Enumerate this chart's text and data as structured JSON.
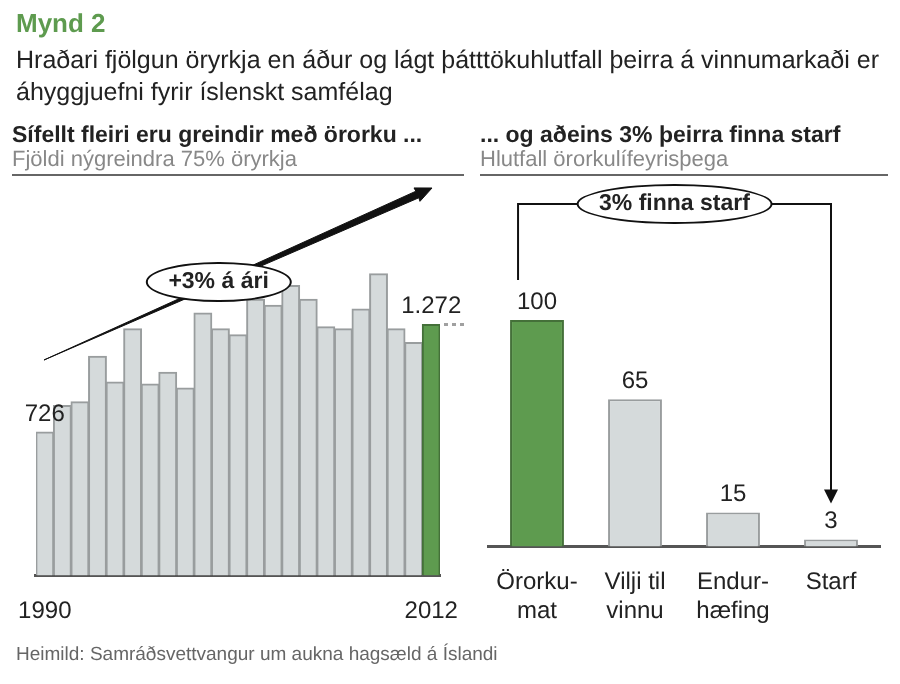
{
  "chart_data": [
    {
      "type": "other",
      "title": "Mynd 2",
      "subtitle": "Hraðari fjölgun öryrkja en áður og lágt þátttökuhlutfall þeirra á vinnumarkaði er áhyggjuefni fyrir íslenskt samfélag",
      "annotations": [
        "Heimild: Samráðsvettvangur um aukna hagsæld á Íslandi"
      ]
    },
    {
      "type": "bar",
      "title": "Sífellt fleiri eru greindir með örorku ...",
      "subtitle": "Fjöldi nýgreindra 75% öryrkja",
      "categories": [
        "1990",
        null,
        null,
        null,
        null,
        null,
        null,
        null,
        null,
        null,
        null,
        null,
        null,
        null,
        null,
        null,
        null,
        null,
        null,
        null,
        null,
        null,
        "2012"
      ],
      "values": [
        726,
        860,
        880,
        1110,
        980,
        1250,
        970,
        1030,
        950,
        1330,
        1250,
        1220,
        1400,
        1370,
        1470,
        1400,
        1260,
        1250,
        1350,
        1530,
        1250,
        1180,
        1272
      ],
      "colors": [
        "#d5dadb",
        "#d5dadb",
        "#d5dadb",
        "#d5dadb",
        "#d5dadb",
        "#d5dadb",
        "#d5dadb",
        "#d5dadb",
        "#d5dadb",
        "#d5dadb",
        "#d5dadb",
        "#d5dadb",
        "#d5dadb",
        "#d5dadb",
        "#d5dadb",
        "#d5dadb",
        "#d5dadb",
        "#d5dadb",
        "#d5dadb",
        "#d5dadb",
        "#d5dadb",
        "#d5dadb",
        "#5e9b4f"
      ],
      "value_labels": [
        "726",
        null,
        null,
        null,
        null,
        null,
        null,
        null,
        null,
        null,
        null,
        null,
        null,
        null,
        null,
        null,
        null,
        null,
        null,
        null,
        null,
        null,
        "1.272"
      ],
      "annotations": [
        "+3% á ári"
      ]
    },
    {
      "type": "bar",
      "title": "... og aðeins 3% þeirra finna starf",
      "subtitle": "Hlutfall örorkulífeyrisþega",
      "categories": [
        "Örorku-\nmat",
        "Vilji til\nvinnu",
        "Endur-\nhæfing",
        "Starf"
      ],
      "values": [
        100,
        65,
        15,
        3
      ],
      "colors": [
        "#5e9b4f",
        "#d5dadb",
        "#d5dadb",
        "#d5dadb"
      ],
      "data_labels": true,
      "annotations": [
        "3% finna starf"
      ]
    }
  ]
}
